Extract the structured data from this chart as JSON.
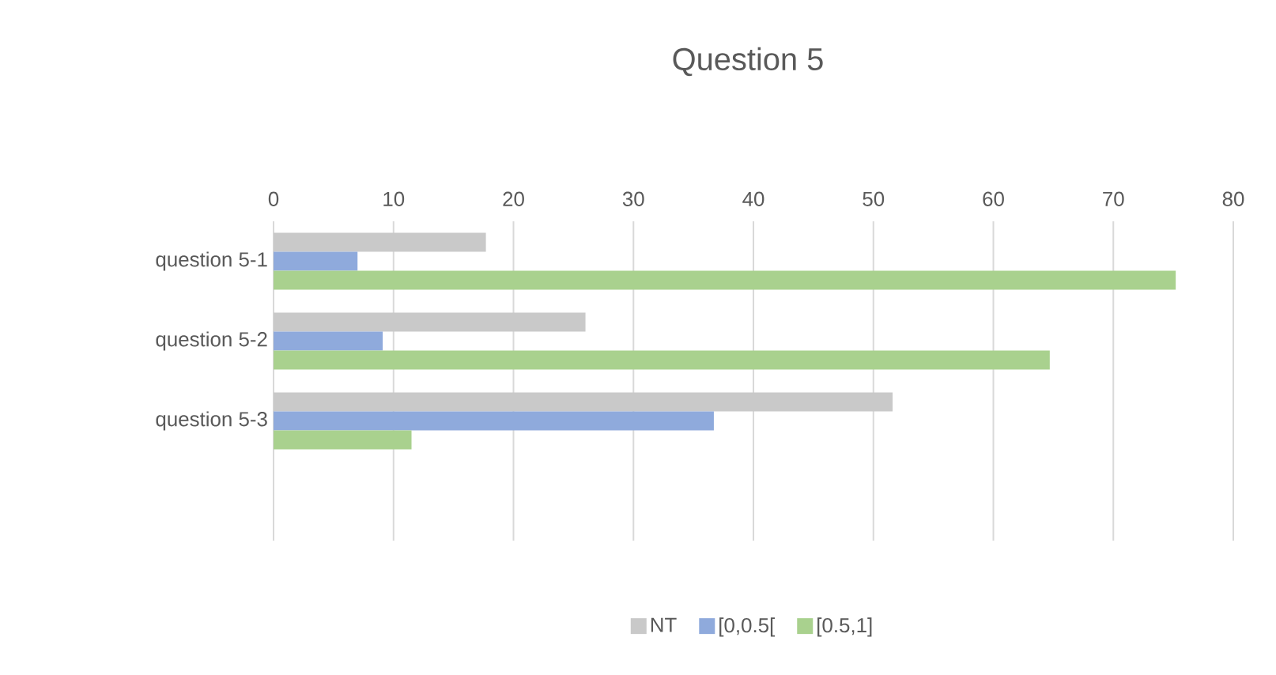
{
  "chart_data": {
    "type": "bar",
    "orientation": "horizontal",
    "title": "Question 5",
    "categories": [
      "question 5-1",
      "question 5-2",
      "question 5-3",
      null
    ],
    "series": [
      {
        "name": "NT",
        "color": "#c9c9c9",
        "values": [
          17.7,
          26.0,
          51.6,
          null
        ]
      },
      {
        "name": "[0,0.5[",
        "color": "#8faadc",
        "values": [
          7.0,
          9.1,
          36.7,
          null
        ]
      },
      {
        "name": "[0.5,1]",
        "color": "#a9d18e",
        "values": [
          75.2,
          64.7,
          11.5,
          null
        ]
      }
    ],
    "xlim": [
      0,
      80
    ],
    "xticks": [
      0,
      10,
      20,
      30,
      40,
      50,
      60,
      70,
      80
    ],
    "grid": "x",
    "legend": "bottom"
  }
}
